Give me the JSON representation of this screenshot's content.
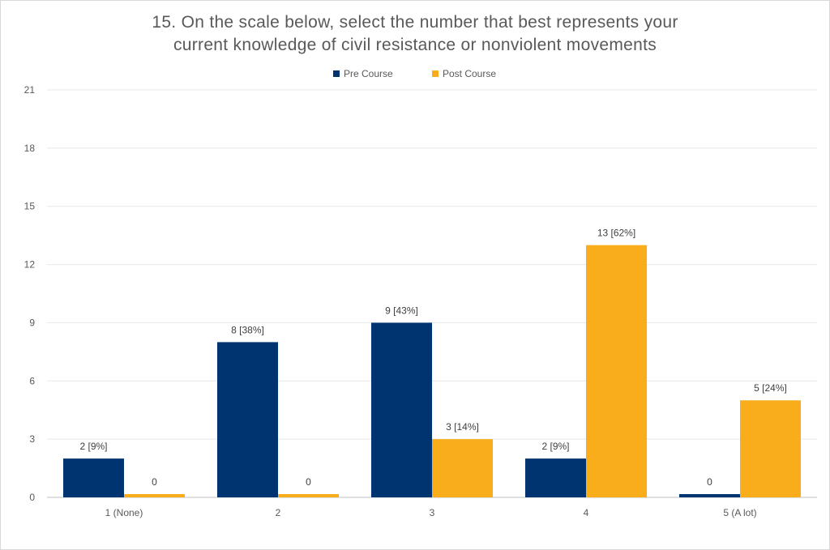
{
  "chart_data": {
    "type": "bar",
    "title_lines": [
      "15. On the scale below, select the number that best represents your",
      "current knowledge of civil resistance or nonviolent movements"
    ],
    "categories": [
      "1 (None)",
      "2",
      "3",
      "4",
      "5 (A lot)"
    ],
    "series": [
      {
        "name": "Pre Course",
        "color": "#003471",
        "values": [
          2,
          8,
          9,
          2,
          0
        ],
        "data_labels": [
          "2 [9%]",
          "8 [38%]",
          "9 [43%]",
          "2 [9%]",
          "0"
        ]
      },
      {
        "name": "Post Course",
        "color": "#F9AD1B",
        "values": [
          0,
          0,
          3,
          13,
          5
        ],
        "data_labels": [
          "0",
          "0",
          "3 [14%]",
          "13 [62%]",
          "5 [24%]"
        ]
      }
    ],
    "yticks": [
      "0",
      "3",
      "6",
      "9",
      "12",
      "15",
      "18",
      "21"
    ],
    "ylim": [
      0,
      21
    ],
    "grid": true,
    "legend_position": "top-center"
  }
}
